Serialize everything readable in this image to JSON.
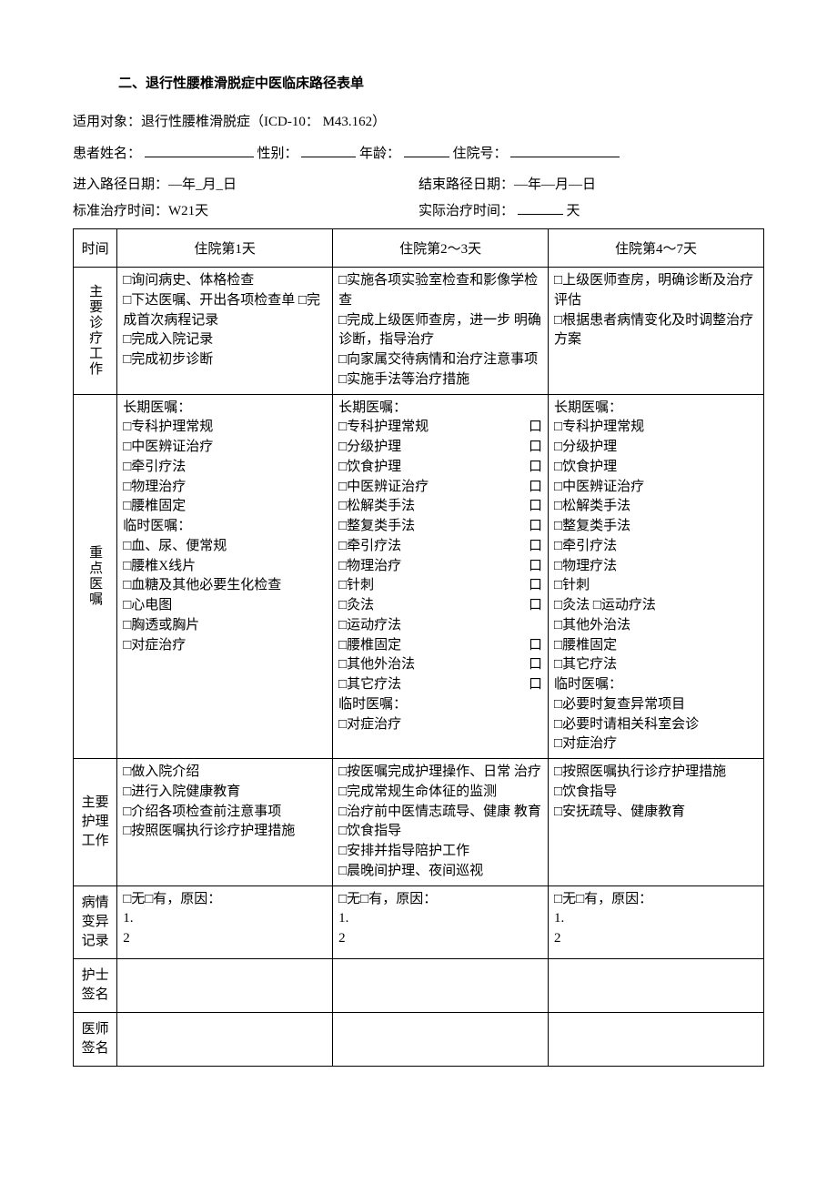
{
  "title": "二、退行性腰椎滑脱症中医临床路径表单",
  "applicability": "适用对象：退行性腰椎滑脱症（ICD-10：  M43.162）",
  "patient_line": {
    "name_label": "患者姓名：",
    "sex_label": "性别：",
    "age_label": "年龄：",
    "admission_label": "住院号："
  },
  "date_line": {
    "enter": "进入路径日期：—年_月_日",
    "end": "结束路径日期：—年—月—日"
  },
  "duration_line": {
    "std": "标准治疗时间：W21天",
    "actual_prefix": "实际治疗时间：",
    "actual_suffix": "天"
  },
  "table": {
    "header": {
      "time": "时间",
      "day1": "住院第1天",
      "day2": "住院第2〜3天",
      "day3": "住院第4〜7天"
    },
    "rows": {
      "main_work": {
        "label": "主要诊疗工作",
        "day1": [
          "□询问病史、体格检查",
          "□下达医嘱、开出各项检查单 □完成首次病程记录",
          "□完成入院记录",
          "□完成初步诊断"
        ],
        "day2": [
          "□实施各项实验室检查和影像学检查",
          "□完成上级医师查房，进一步 明确诊断，指导治疗",
          "□向家属交待病情和治疗注意事项",
          "□实施手法等治疗措施"
        ],
        "day3": [
          "□上级医师查房，明确诊断及治疗评估",
          "□根据患者病情变化及时调整治疗方案"
        ]
      },
      "key_orders": {
        "label": "重点医嘱",
        "day1": [
          "长期医嘱：",
          "□专科护理常规",
          "□中医辨证治疗",
          "□牵引疗法",
          "□物理治疗",
          "□腰椎固定",
          "临时医嘱：",
          "□血、尿、便常规",
          "□腰椎X线片",
          "□血糖及其他必要生化检查",
          "□心电图",
          "□胸透或胸片",
          "□对症治疗"
        ],
        "day2": [
          {
            "text": "长期医嘱：",
            "box": false
          },
          {
            "text": "□专科护理常规",
            "box": true
          },
          {
            "text": "□分级护理",
            "box": true
          },
          {
            "text": "□饮食护理",
            "box": true
          },
          {
            "text": "□中医辨证治疗",
            "box": true
          },
          {
            "text": "□松解类手法",
            "box": true
          },
          {
            "text": "□整复类手法",
            "box": true
          },
          {
            "text": "□牵引疗法",
            "box": true
          },
          {
            "text": "□物理治疗",
            "box": true
          },
          {
            "text": "□针刺",
            "box": true
          },
          {
            "text": "□灸法",
            "box": true
          },
          {
            "text": "□运动疗法",
            "box": false
          },
          {
            "text": "□腰椎固定",
            "box": true
          },
          {
            "text": "□其他外治法",
            "box": true
          },
          {
            "text": "□其它疗法",
            "box": true
          },
          {
            "text": "临时医嘱：",
            "box": false
          },
          {
            "text": "□对症治疗",
            "box": false
          }
        ],
        "day3": [
          "长期医嘱：",
          "□专科护理常规",
          "□分级护理",
          "□饮食护理",
          "□中医辨证治疗",
          "□松解类手法",
          "□整复类手法",
          "□牵引疗法",
          "□物理疗法",
          "□针刺",
          "□灸法 □运动疗法",
          "□其他外治法",
          "□腰椎固定",
          "□其它疗法",
          "临时医嘱：",
          "□必要时复查异常项目",
          "□必要时请相关科室会诊",
          "□对症治疗"
        ]
      },
      "nursing": {
        "label": "主要 护理 工作",
        "day1": [
          "□做入院介绍",
          "□进行入院健康教育",
          "□介绍各项检查前注意事项",
          "□按照医嘱执行诊疗护理措施"
        ],
        "day2": [
          "□按医嘱完成护理操作、日常 治疗",
          "□完成常规生命体征的监测",
          "□治疗前中医情志疏导、健康 教育",
          "□饮食指导",
          "□安排并指导陪护工作",
          "□晨晚间护理、夜间巡视"
        ],
        "day3": [
          "□按照医嘱执行诊疗护理措施",
          "□饮食指导",
          "□安抚疏导、健康教育"
        ]
      },
      "variance": {
        "label": "病情 变异 记录",
        "text": "□无□有，原因：",
        "line1": "1.",
        "line2": "2"
      },
      "nurse_sig": {
        "label": "护士 签名"
      },
      "doctor_sig": {
        "label": "医师 签名"
      }
    }
  }
}
